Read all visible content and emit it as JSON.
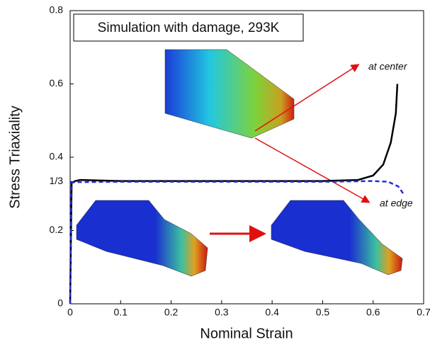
{
  "chart_data": {
    "type": "line",
    "title": "Simulation with damage, 293K",
    "x_label": "Nominal Strain",
    "y_label": "Stress Triaxiality",
    "xlim": [
      0,
      0.7
    ],
    "ylim": [
      0,
      0.8
    ],
    "xticks": [
      0,
      0.1,
      0.2,
      0.3,
      0.4,
      0.5,
      0.6,
      0.7
    ],
    "yticks": [
      0,
      0.2,
      {
        "value": 0.3333,
        "label": "1/3"
      },
      0.4,
      0.6,
      0.8
    ],
    "series": [
      {
        "name": "at center",
        "color": "#000000",
        "style": "solid",
        "x": [
          0,
          0.003,
          0.01,
          0.02,
          0.1,
          0.3,
          0.5,
          0.57,
          0.6,
          0.62,
          0.635,
          0.645,
          0.648
        ],
        "values": [
          0,
          0.33,
          0.335,
          0.338,
          0.335,
          0.335,
          0.335,
          0.338,
          0.35,
          0.38,
          0.44,
          0.52,
          0.6
        ]
      },
      {
        "name": "at edge",
        "color": "#1f2fd6",
        "style": "dashed",
        "x": [
          0,
          0.002,
          0.01,
          0.1,
          0.3,
          0.5,
          0.6,
          0.63,
          0.65,
          0.66
        ],
        "values": [
          0,
          0.33,
          0.332,
          0.333,
          0.333,
          0.333,
          0.335,
          0.333,
          0.32,
          0.3
        ]
      }
    ]
  }
}
